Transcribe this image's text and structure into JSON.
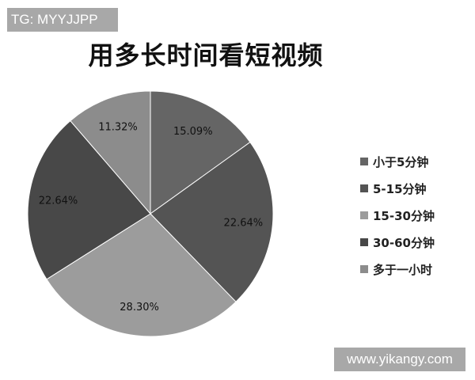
{
  "watermark_top": "TG: MYYJJPP",
  "watermark_bottom": "www.yikangy.com",
  "chart_data": {
    "type": "pie",
    "title": "用多长时间看短视频",
    "categories": [
      "小于5分钟",
      "5-15分钟",
      "15-30分钟",
      "30-60分钟",
      "多于一小时"
    ],
    "values": [
      15.09,
      22.64,
      28.3,
      22.64,
      11.32
    ],
    "labels": [
      "15.09%",
      "22.64%",
      "28.30%",
      "22.64%",
      "11.32%"
    ],
    "colors": [
      "#656565",
      "#545454",
      "#9c9c9c",
      "#484848",
      "#8c8c8c"
    ],
    "start_angle": "top, clockwise",
    "legend": "right"
  }
}
